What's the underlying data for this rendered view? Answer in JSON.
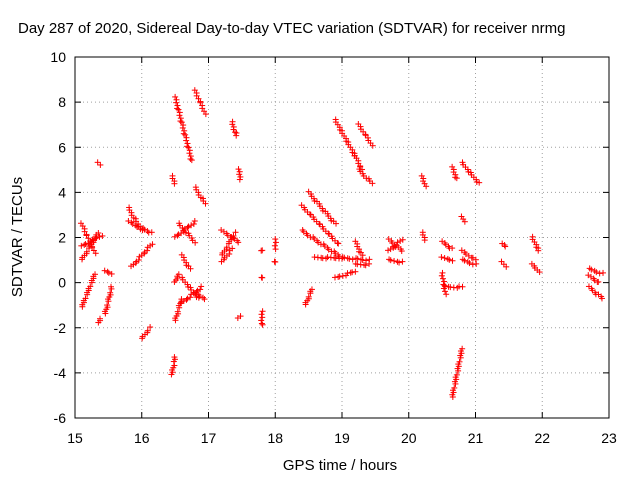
{
  "chart_data": {
    "type": "scatter",
    "title": "Day 287 of 2020, Sidereal Day-to-day VTEC variation (SDTVAR) for receiver nrmg",
    "xlabel": "GPS time / hours",
    "ylabel": "SDTVAR / TECUs",
    "xlim": [
      15,
      23
    ],
    "ylim": [
      -6,
      10
    ],
    "xticks": [
      15,
      16,
      17,
      18,
      19,
      20,
      21,
      22,
      23
    ],
    "yticks": [
      -6,
      -4,
      -2,
      0,
      2,
      4,
      6,
      8,
      10
    ],
    "xtick_labels": [
      "15",
      "16",
      "17",
      "18",
      "19",
      "20",
      "21",
      "22",
      "23"
    ],
    "ytick_labels": [
      "-6",
      "-4",
      "-2",
      "0",
      "2",
      "4",
      "6",
      "8",
      "10"
    ],
    "grid": true,
    "marker": "plus",
    "series": [
      {
        "name": "SDTVAR",
        "color": "#ff0000",
        "segments": [
          {
            "x0": 15.1,
            "y0": 2.6,
            "x1": 15.3,
            "y1": 1.3
          },
          {
            "x0": 15.1,
            "y0": 1.0,
            "x1": 15.35,
            "y1": 2.2
          },
          {
            "x0": 15.1,
            "y0": 1.6,
            "x1": 15.4,
            "y1": 2.1
          },
          {
            "x0": 15.1,
            "y0": -1.1,
            "x1": 15.3,
            "y1": 0.4
          },
          {
            "x0": 15.35,
            "y0": -1.8,
            "x1": 15.38,
            "y1": -1.6
          },
          {
            "x0": 15.35,
            "y0": 5.3,
            "x1": 15.38,
            "y1": 5.2
          },
          {
            "x0": 15.45,
            "y0": -1.4,
            "x1": 15.55,
            "y1": -0.2
          },
          {
            "x0": 15.45,
            "y0": 0.5,
            "x1": 15.55,
            "y1": 0.4
          },
          {
            "x0": 15.8,
            "y0": 3.3,
            "x1": 16.0,
            "y1": 2.3
          },
          {
            "x0": 15.8,
            "y0": 2.7,
            "x1": 16.15,
            "y1": 2.2
          },
          {
            "x0": 15.85,
            "y0": 0.7,
            "x1": 16.15,
            "y1": 1.7
          },
          {
            "x0": 16.0,
            "y0": -2.5,
            "x1": 16.12,
            "y1": -2.0
          },
          {
            "x0": 16.45,
            "y0": -4.1,
            "x1": 16.5,
            "y1": -3.3
          },
          {
            "x0": 16.45,
            "y0": 4.7,
            "x1": 16.5,
            "y1": 4.4
          },
          {
            "x0": 16.5,
            "y0": 8.2,
            "x1": 16.75,
            "y1": 5.4
          },
          {
            "x0": 16.5,
            "y0": 0.0,
            "x1": 16.55,
            "y1": 0.4
          },
          {
            "x0": 16.5,
            "y0": -1.7,
            "x1": 16.6,
            "y1": -0.7
          },
          {
            "x0": 16.5,
            "y0": 2.0,
            "x1": 16.8,
            "y1": 2.7
          },
          {
            "x0": 16.55,
            "y0": 2.6,
            "x1": 16.8,
            "y1": 1.8
          },
          {
            "x0": 16.6,
            "y0": 1.2,
            "x1": 16.72,
            "y1": 0.6
          },
          {
            "x0": 16.6,
            "y0": -0.9,
            "x1": 16.9,
            "y1": -0.2
          },
          {
            "x0": 16.6,
            "y0": 0.2,
            "x1": 16.85,
            "y1": -0.7
          },
          {
            "x0": 16.8,
            "y0": 8.5,
            "x1": 16.95,
            "y1": 7.5
          },
          {
            "x0": 16.8,
            "y0": 4.2,
            "x1": 16.95,
            "y1": 3.5
          },
          {
            "x0": 16.8,
            "y0": -0.5,
            "x1": 16.95,
            "y1": -0.7
          },
          {
            "x0": 17.2,
            "y0": 2.3,
            "x1": 17.45,
            "y1": 1.8
          },
          {
            "x0": 17.2,
            "y0": 1.2,
            "x1": 17.4,
            "y1": 2.2
          },
          {
            "x0": 17.2,
            "y0": 0.9,
            "x1": 17.35,
            "y1": 1.5
          },
          {
            "x0": 17.35,
            "y0": 7.1,
            "x1": 17.42,
            "y1": 6.5
          },
          {
            "x0": 17.45,
            "y0": 5.0,
            "x1": 17.48,
            "y1": 4.6
          },
          {
            "x0": 17.45,
            "y0": -1.6,
            "x1": 17.48,
            "y1": -1.5
          },
          {
            "x0": 17.8,
            "y0": 1.4,
            "x1": 17.8,
            "y1": 1.4
          },
          {
            "x0": 17.8,
            "y0": 0.2,
            "x1": 17.8,
            "y1": 0.2
          },
          {
            "x0": 17.8,
            "y0": -1.3,
            "x1": 17.8,
            "y1": -1.9
          },
          {
            "x0": 18.0,
            "y0": 1.9,
            "x1": 18.0,
            "y1": 1.5
          },
          {
            "x0": 18.0,
            "y0": 0.9,
            "x1": 18.0,
            "y1": 0.9
          },
          {
            "x0": 18.45,
            "y0": -1.0,
            "x1": 18.55,
            "y1": -0.3
          },
          {
            "x0": 18.4,
            "y0": 3.4,
            "x1": 18.95,
            "y1": 1.7
          },
          {
            "x0": 18.4,
            "y0": 2.3,
            "x1": 19.0,
            "y1": 1.1
          },
          {
            "x0": 18.5,
            "y0": 4.0,
            "x1": 18.9,
            "y1": 2.6
          },
          {
            "x0": 18.6,
            "y0": 1.1,
            "x1": 18.95,
            "y1": 1.1
          },
          {
            "x0": 18.9,
            "y0": 7.2,
            "x1": 19.2,
            "y1": 5.6
          },
          {
            "x0": 18.9,
            "y0": 0.2,
            "x1": 19.2,
            "y1": 0.5
          },
          {
            "x0": 19.0,
            "y0": 1.1,
            "x1": 19.4,
            "y1": 1.0
          },
          {
            "x0": 19.2,
            "y0": 1.8,
            "x1": 19.3,
            "y1": 1.2
          },
          {
            "x0": 19.2,
            "y0": 5.6,
            "x1": 19.3,
            "y1": 5.0
          },
          {
            "x0": 19.2,
            "y0": 0.8,
            "x1": 19.4,
            "y1": 0.8
          },
          {
            "x0": 19.25,
            "y0": 7.0,
            "x1": 19.45,
            "y1": 6.1
          },
          {
            "x0": 19.25,
            "y0": 5.0,
            "x1": 19.45,
            "y1": 4.4
          },
          {
            "x0": 19.7,
            "y0": 1.9,
            "x1": 19.9,
            "y1": 1.4
          },
          {
            "x0": 19.7,
            "y0": 1.4,
            "x1": 19.9,
            "y1": 1.9
          },
          {
            "x0": 19.7,
            "y0": 1.0,
            "x1": 19.9,
            "y1": 0.9
          },
          {
            "x0": 20.2,
            "y0": 4.7,
            "x1": 20.25,
            "y1": 4.3
          },
          {
            "x0": 20.2,
            "y0": 2.2,
            "x1": 20.25,
            "y1": 1.9
          },
          {
            "x0": 20.5,
            "y0": 1.8,
            "x1": 20.65,
            "y1": 1.5
          },
          {
            "x0": 20.5,
            "y0": 1.1,
            "x1": 20.65,
            "y1": 1.0
          },
          {
            "x0": 20.5,
            "y0": 0.4,
            "x1": 20.55,
            "y1": -0.5
          },
          {
            "x0": 20.55,
            "y0": -0.2,
            "x1": 20.8,
            "y1": -0.2
          },
          {
            "x0": 20.65,
            "y0": -5.1,
            "x1": 20.8,
            "y1": -2.9
          },
          {
            "x0": 20.65,
            "y0": 5.1,
            "x1": 20.72,
            "y1": 4.6
          },
          {
            "x0": 20.8,
            "y0": 2.9,
            "x1": 20.83,
            "y1": 2.7
          },
          {
            "x0": 20.8,
            "y0": 5.3,
            "x1": 21.05,
            "y1": 4.4
          },
          {
            "x0": 20.8,
            "y0": 1.4,
            "x1": 21.0,
            "y1": 1.0
          },
          {
            "x0": 20.8,
            "y0": 1.0,
            "x1": 21.0,
            "y1": 0.8
          },
          {
            "x0": 21.4,
            "y0": 1.7,
            "x1": 21.45,
            "y1": 1.6
          },
          {
            "x0": 21.4,
            "y0": 0.9,
            "x1": 21.45,
            "y1": 0.7
          },
          {
            "x0": 21.85,
            "y0": 2.0,
            "x1": 21.95,
            "y1": 1.4
          },
          {
            "x0": 21.85,
            "y0": 0.8,
            "x1": 21.95,
            "y1": 0.5
          },
          {
            "x0": 22.7,
            "y0": 0.6,
            "x1": 22.9,
            "y1": 0.4
          },
          {
            "x0": 22.7,
            "y0": -0.2,
            "x1": 22.9,
            "y1": -0.7
          },
          {
            "x0": 22.7,
            "y0": 0.3,
            "x1": 22.85,
            "y1": 0.0
          }
        ]
      }
    ]
  }
}
